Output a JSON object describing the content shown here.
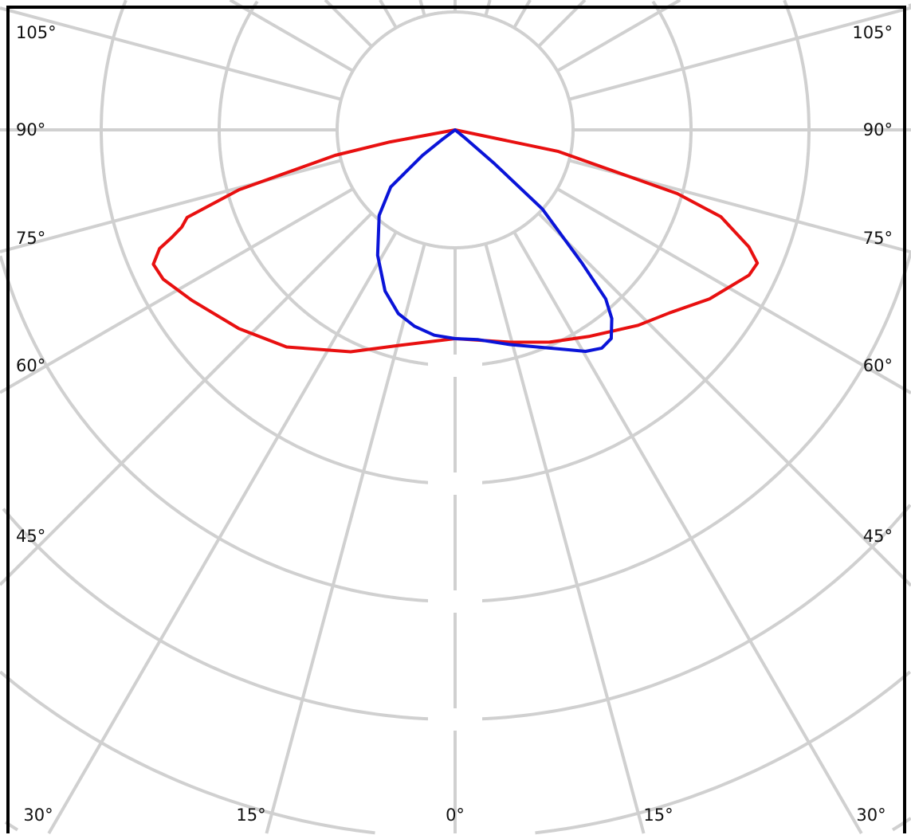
{
  "chart_data": {
    "type": "polar",
    "title": "",
    "grid": true,
    "angle_step_deg": 15,
    "ring_count": 8,
    "ring_labels_visible": false,
    "angle_labels": {
      "left": [
        "105°",
        "90°",
        "75°",
        "60°",
        "45°"
      ],
      "right": [
        "105°",
        "90°",
        "75°",
        "60°",
        "45°"
      ],
      "bottom": [
        "30°",
        "15°",
        "0°",
        "15°",
        "30°"
      ]
    },
    "value_units": "ring spacings (ring labels not shown)",
    "series": [
      {
        "color": "#e81010",
        "angles": [
          -90,
          -79.5,
          -78,
          -74.5,
          -71.9,
          -70.4,
          -69.2,
          -68.1,
          -66,
          -62.9,
          -57.1,
          -47.4,
          -37.8,
          -25.2,
          -14.7,
          0,
          14.5,
          24,
          33.1,
          43.1,
          49.5,
          56.4,
          63.7,
          66.2,
          68.3,
          71.9,
          74,
          78.2,
          90
        ],
        "values": [
          0,
          0.56,
          1.04,
          1.9,
          2.39,
          2.46,
          2.57,
          2.7,
          2.8,
          2.78,
          2.66,
          2.49,
          2.33,
          2.08,
          1.89,
          1.77,
          1.86,
          1.97,
          2.09,
          2.27,
          2.39,
          2.59,
          2.78,
          2.8,
          2.68,
          2.37,
          1.96,
          0.89,
          0
        ]
      },
      {
        "color": "#0a14d8",
        "angles": [
          -90,
          -53.1,
          -52,
          -48.4,
          -41.6,
          -31.7,
          -23.5,
          -17.2,
          -11.7,
          -5.8,
          0,
          6.3,
          14.4,
          25.1,
          30.5,
          33.9,
          36.8,
          39.7,
          41.7,
          43.6,
          47.8,
          49.4,
          50.7,
          90
        ],
        "values": [
          0,
          0.14,
          0.35,
          0.73,
          0.97,
          1.25,
          1.49,
          1.63,
          1.7,
          1.75,
          1.77,
          1.79,
          1.88,
          2.05,
          2.18,
          2.23,
          2.21,
          2.08,
          1.92,
          1.56,
          1.0,
          0.44,
          0.1,
          0
        ]
      }
    ],
    "grid_color": "#d0d0d0"
  }
}
